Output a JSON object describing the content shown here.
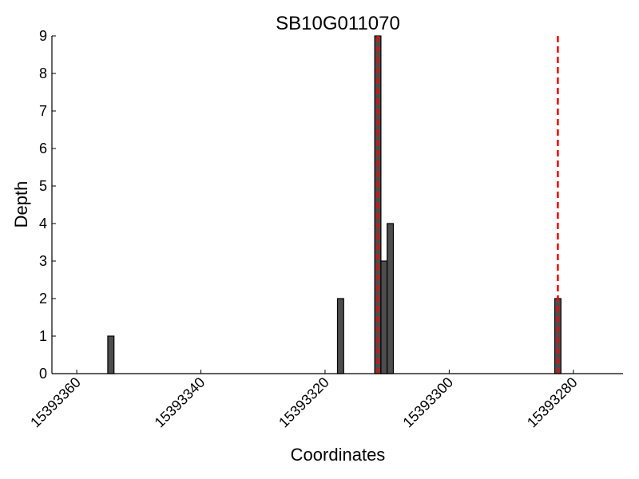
{
  "chart_data": {
    "type": "bar",
    "title": "SB10G011070",
    "xlabel": "Coordinates",
    "ylabel": "Depth",
    "xlim": [
      15393364,
      15393272
    ],
    "x_reversed": true,
    "ylim": [
      0,
      9
    ],
    "xticks": [
      15393360,
      15393340,
      15393320,
      15393300,
      15393280
    ],
    "yticks": [
      0,
      1,
      2,
      3,
      4,
      5,
      6,
      7,
      8,
      9
    ],
    "grid": false,
    "bars": [
      {
        "x": 15393355,
        "value": 1
      },
      {
        "x": 15393318,
        "value": 2
      },
      {
        "x": 15393312,
        "value": 9
      },
      {
        "x": 15393311,
        "value": 3
      },
      {
        "x": 15393310,
        "value": 4
      },
      {
        "x": 15393283,
        "value": 2
      }
    ],
    "bar_width": 1,
    "bar_color": "#4d4d4d",
    "reference_lines": [
      15393311.5,
      15393282.5
    ],
    "reference_line_color": "#ff0000"
  }
}
